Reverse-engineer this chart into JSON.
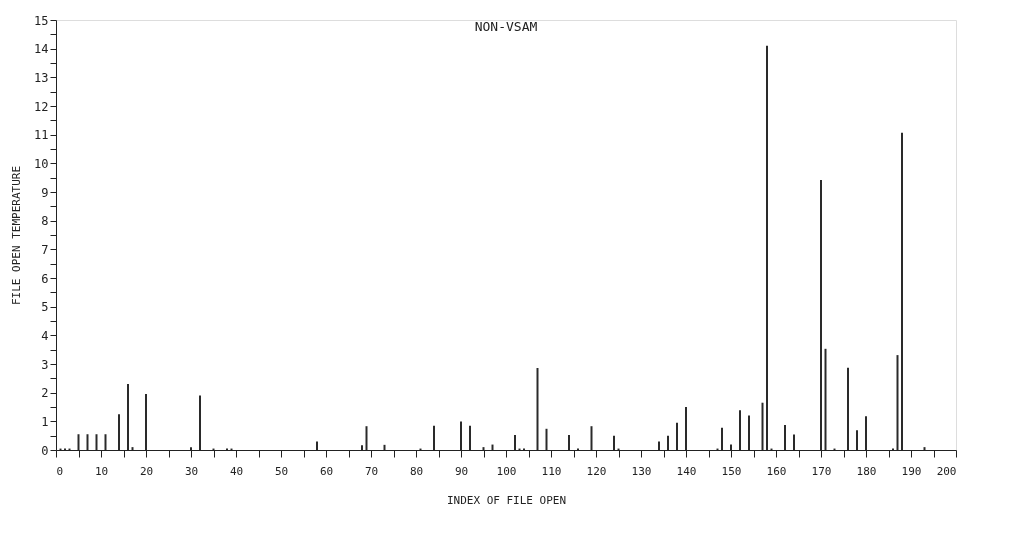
{
  "chart_data": {
    "type": "bar",
    "title": "NON-VSAM",
    "xlabel": "INDEX OF FILE OPEN",
    "ylabel": "FILE OPEN TEMPERATURE",
    "x": [
      1,
      2,
      3,
      5,
      7,
      9,
      11,
      14,
      16,
      17,
      20,
      30,
      32,
      35,
      38,
      39,
      58,
      68,
      69,
      73,
      81,
      84,
      90,
      92,
      95,
      97,
      102,
      103,
      104,
      107,
      109,
      114,
      116,
      119,
      124,
      125,
      134,
      136,
      138,
      140,
      147,
      148,
      150,
      152,
      154,
      157,
      158,
      159,
      162,
      164,
      170,
      171,
      173,
      176,
      178,
      180,
      186,
      187,
      188,
      193
    ],
    "values": [
      0.05,
      0.05,
      0.05,
      0.55,
      0.55,
      0.55,
      0.55,
      1.25,
      2.3,
      0.1,
      1.95,
      0.1,
      1.9,
      0.05,
      0.05,
      0.05,
      0.3,
      0.17,
      0.83,
      0.18,
      0.05,
      0.85,
      0.99,
      0.85,
      0.1,
      0.19,
      0.52,
      0.05,
      0.05,
      2.86,
      0.74,
      0.52,
      0.05,
      0.83,
      0.5,
      0.05,
      0.3,
      0.5,
      0.95,
      1.5,
      0.05,
      0.78,
      0.19,
      1.39,
      1.2,
      1.65,
      14.1,
      0.05,
      0.87,
      0.54,
      9.42,
      3.53,
      0.05,
      2.87,
      0.69,
      1.18,
      0.05,
      3.31,
      11.07,
      0.1
    ],
    "color": "#2a2a2a",
    "xlim": [
      0,
      200
    ],
    "ylim": [
      0,
      15
    ],
    "xticks": [
      0,
      {
        "value": 5,
        "label": null
      },
      10,
      {
        "value": 15,
        "label": null
      },
      20,
      {
        "value": 25,
        "label": null
      },
      30,
      {
        "value": 35,
        "label": null
      },
      40,
      {
        "value": 45,
        "label": null
      },
      50,
      {
        "value": 55,
        "label": null
      },
      60,
      {
        "value": 65,
        "label": null
      },
      70,
      {
        "value": 75,
        "label": null
      },
      80,
      {
        "value": 85,
        "label": null
      },
      90,
      {
        "value": 95,
        "label": null
      },
      100,
      {
        "value": 105,
        "label": null
      },
      110,
      {
        "value": 115,
        "label": null
      },
      120,
      {
        "value": 125,
        "label": null
      },
      130,
      {
        "value": 135,
        "label": null
      },
      140,
      {
        "value": 145,
        "label": null
      },
      150,
      {
        "value": 155,
        "label": null
      },
      160,
      {
        "value": 165,
        "label": null
      },
      170,
      {
        "value": 175,
        "label": null
      },
      180,
      {
        "value": 185,
        "label": null
      },
      190,
      {
        "value": 195,
        "label": null
      },
      200
    ],
    "yticks": [
      0,
      {
        "value": 0.5,
        "label": null
      },
      1,
      {
        "value": 1.5,
        "label": null
      },
      2,
      {
        "value": 2.5,
        "label": null
      },
      3,
      {
        "value": 3.5,
        "label": null
      },
      4,
      {
        "value": 4.5,
        "label": null
      },
      5,
      {
        "value": 5.5,
        "label": null
      },
      6,
      {
        "value": 6.5,
        "label": null
      },
      7,
      {
        "value": 7.5,
        "label": null
      },
      8,
      {
        "value": 8.5,
        "label": null
      },
      9,
      {
        "value": 9.5,
        "label": null
      },
      10,
      {
        "value": 10.5,
        "label": null
      },
      11,
      {
        "value": 11.5,
        "label": null
      },
      12,
      {
        "value": 12.5,
        "label": null
      },
      13,
      {
        "value": 13.5,
        "label": null
      },
      14,
      {
        "value": 14.5,
        "label": null
      },
      15
    ],
    "grid": false
  }
}
